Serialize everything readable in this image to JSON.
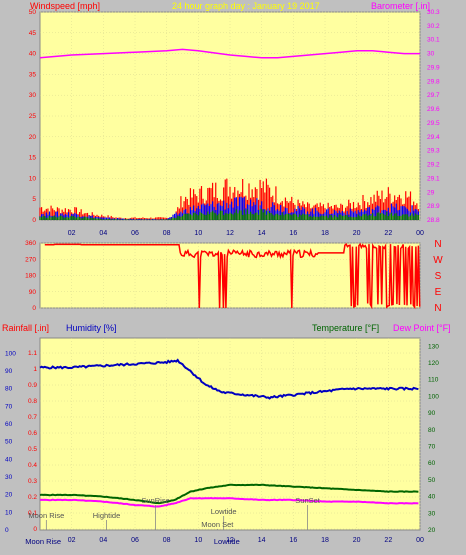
{
  "header": {
    "left": "Windspeed [mph]",
    "center": "24 hour graph day : January 19 2017",
    "right": "Barometer [.in]"
  },
  "x_ticks": [
    "02",
    "04",
    "06",
    "08",
    "10",
    "12",
    "14",
    "16",
    "18",
    "20",
    "22",
    "00"
  ],
  "colors": {
    "background": "#c0c0c0",
    "plot": "#ffffa0",
    "wind": "#ff0000",
    "gust_mid": "#0000ff",
    "gust_low": "#008000",
    "barometer": "#ff00ff",
    "humidity": "#0000c0",
    "temperature": "#006400",
    "dewpoint": "#ff00ff",
    "title_yellow": "#ffff00"
  },
  "chart_data": [
    {
      "type": "bar",
      "title": "24 hour graph day : January 19 2017",
      "ylabel": "Windspeed [mph]",
      "y2label": "Barometer [.in]",
      "ylim": [
        0,
        50
      ],
      "y2lim": [
        28.8,
        30.3
      ],
      "y_ticks": [
        "0",
        "5",
        "10",
        "15",
        "20",
        "25",
        "30",
        "35",
        "40",
        "45",
        "50"
      ],
      "y2_ticks": [
        "28.8",
        "28.9",
        "29",
        "29.1",
        "29.2",
        "29.3",
        "29.4",
        "29.5",
        "29.6",
        "29.7",
        "29.8",
        "29.9",
        "30",
        "30.1",
        "30.2",
        "30.3"
      ],
      "series": [
        {
          "values_description": "wind gust (red)",
          "hours": [
            0,
            1,
            2,
            3,
            4,
            5,
            6,
            7,
            8,
            8.5,
            9,
            10,
            11,
            12,
            13,
            14,
            15,
            16,
            17,
            18,
            19,
            20,
            21,
            22,
            23,
            24
          ],
          "values": [
            3,
            2.5,
            2.5,
            1.5,
            1,
            0.5,
            0.5,
            0.5,
            0.5,
            1,
            5,
            6,
            7,
            8,
            8,
            8,
            6,
            4,
            3,
            3,
            3,
            4,
            5,
            6,
            6,
            4
          ]
        },
        {
          "values_description": "wind average (blue)",
          "hours": [
            0,
            2,
            4,
            6,
            8,
            9,
            10,
            12,
            14,
            16,
            18,
            20,
            22,
            24
          ],
          "values": [
            1.5,
            1.5,
            0.5,
            0.2,
            0.2,
            2,
            3,
            4,
            4,
            2.5,
            2,
            2,
            3,
            2.5
          ]
        },
        {
          "values_description": "wind low (green)",
          "hours": [
            0,
            2,
            4,
            6,
            8,
            9,
            10,
            12,
            14,
            16,
            18,
            20,
            22,
            24
          ],
          "values": [
            0.8,
            0.8,
            0.2,
            0.1,
            0.1,
            1,
            1.5,
            2,
            2,
            1.2,
            1,
            1,
            1.5,
            1.2
          ]
        },
        {
          "values_description": "barometer (magenta)",
          "hours": [
            0,
            2,
            4,
            6,
            8,
            9,
            10,
            12,
            13,
            14,
            15,
            16,
            17,
            18,
            19,
            20,
            21,
            22,
            23,
            24
          ],
          "values": [
            29.97,
            29.99,
            30.0,
            30.01,
            30.02,
            30.03,
            30.02,
            29.99,
            29.98,
            29.97,
            29.97,
            29.98,
            29.99,
            30.0,
            30.01,
            30.02,
            30.02,
            30.01,
            30.0,
            30.0
          ]
        }
      ]
    },
    {
      "type": "scatter",
      "ylabel_right": [
        "N",
        "W",
        "S",
        "E",
        "N"
      ],
      "ylim": [
        0,
        360
      ],
      "y_ticks": [
        "0",
        "90",
        "180",
        "270",
        "360"
      ],
      "description": "wind direction degrees",
      "runs": [
        {
          "from": 0.2,
          "to": 0.8,
          "value": 0
        },
        {
          "from": 0.8,
          "to": 2.0,
          "value": 350
        },
        {
          "from": 2.0,
          "to": 8.8,
          "value": 350
        },
        {
          "from": 8.8,
          "to": 10.5,
          "value": 310
        },
        {
          "from": 10.5,
          "to": 17.5,
          "value": 300
        },
        {
          "from": 17.5,
          "to": 19.0,
          "value": 305
        },
        {
          "from": 19.0,
          "to": 24,
          "value": 320
        }
      ]
    },
    {
      "type": "line",
      "labels": {
        "rainfall": "Rainfall [.in]",
        "humidity": "Humidity [%]",
        "temperature": "Temperature [°F]",
        "dewpoint": "Dew Point [°F]"
      },
      "left_ticks_humidity": [
        "0",
        "10",
        "20",
        "30",
        "40",
        "50",
        "60",
        "70",
        "80",
        "90",
        "100"
      ],
      "left_ticks_rain": [
        "0",
        "0.1",
        "0.2",
        "0.3",
        "0.4",
        "0.5",
        "0.6",
        "0.7",
        "0.8",
        "0.9",
        "1",
        "1.1"
      ],
      "right_ticks": [
        "20",
        "30",
        "40",
        "50",
        "60",
        "70",
        "80",
        "90",
        "100",
        "110",
        "120",
        "130"
      ],
      "ylim_left": [
        0,
        100
      ],
      "ylim_right": [
        20,
        135
      ],
      "humidity": {
        "hours": [
          0,
          2,
          4,
          6,
          8,
          8.7,
          9.5,
          10.5,
          11.5,
          12.5,
          13.5,
          14.5,
          15.5,
          16.5,
          17.5,
          18.5,
          19.5,
          20.5,
          21.5,
          22.5,
          23.5,
          24
        ],
        "values": [
          92,
          92,
          93,
          94,
          95,
          96,
          90,
          82,
          78,
          77,
          76,
          75,
          76,
          77,
          78,
          79,
          80,
          80,
          80,
          80,
          80,
          80
        ]
      },
      "temperature": {
        "hours": [
          0,
          2,
          4,
          6,
          7.5,
          8.5,
          9.5,
          10.5,
          12,
          14,
          16,
          18,
          20,
          22,
          24
        ],
        "values": [
          41,
          41,
          40,
          38,
          36,
          38,
          43,
          45,
          47,
          47,
          46,
          45,
          44,
          43,
          43
        ]
      },
      "dewpoint": {
        "hours": [
          0,
          2,
          4,
          6,
          7.5,
          8.5,
          9.5,
          10.5,
          12,
          14,
          16,
          18,
          20,
          22,
          24
        ],
        "values": [
          38,
          38,
          37,
          35,
          34,
          36,
          39,
          39,
          39,
          38,
          38,
          37,
          37,
          36,
          36
        ]
      },
      "annotations": [
        {
          "text": "SunRise",
          "hour": 7.3,
          "row": "top"
        },
        {
          "text": "Hightide",
          "hour": 4.2,
          "row": "mid"
        },
        {
          "text": "Lowtide",
          "hour": 11.6,
          "row": "top2"
        },
        {
          "text": "Moon Set",
          "hour": 11.2,
          "row": "mid2"
        },
        {
          "text": "SunSet",
          "hour": 16.9,
          "row": "top"
        },
        {
          "text": "Moon Rise",
          "hour": 0.4,
          "row": "mid"
        },
        {
          "text": "Moon Rise",
          "hour": 0.2,
          "row": "axis"
        },
        {
          "text": "Lowtide",
          "hour": 11.8,
          "row": "axis"
        }
      ]
    }
  ]
}
